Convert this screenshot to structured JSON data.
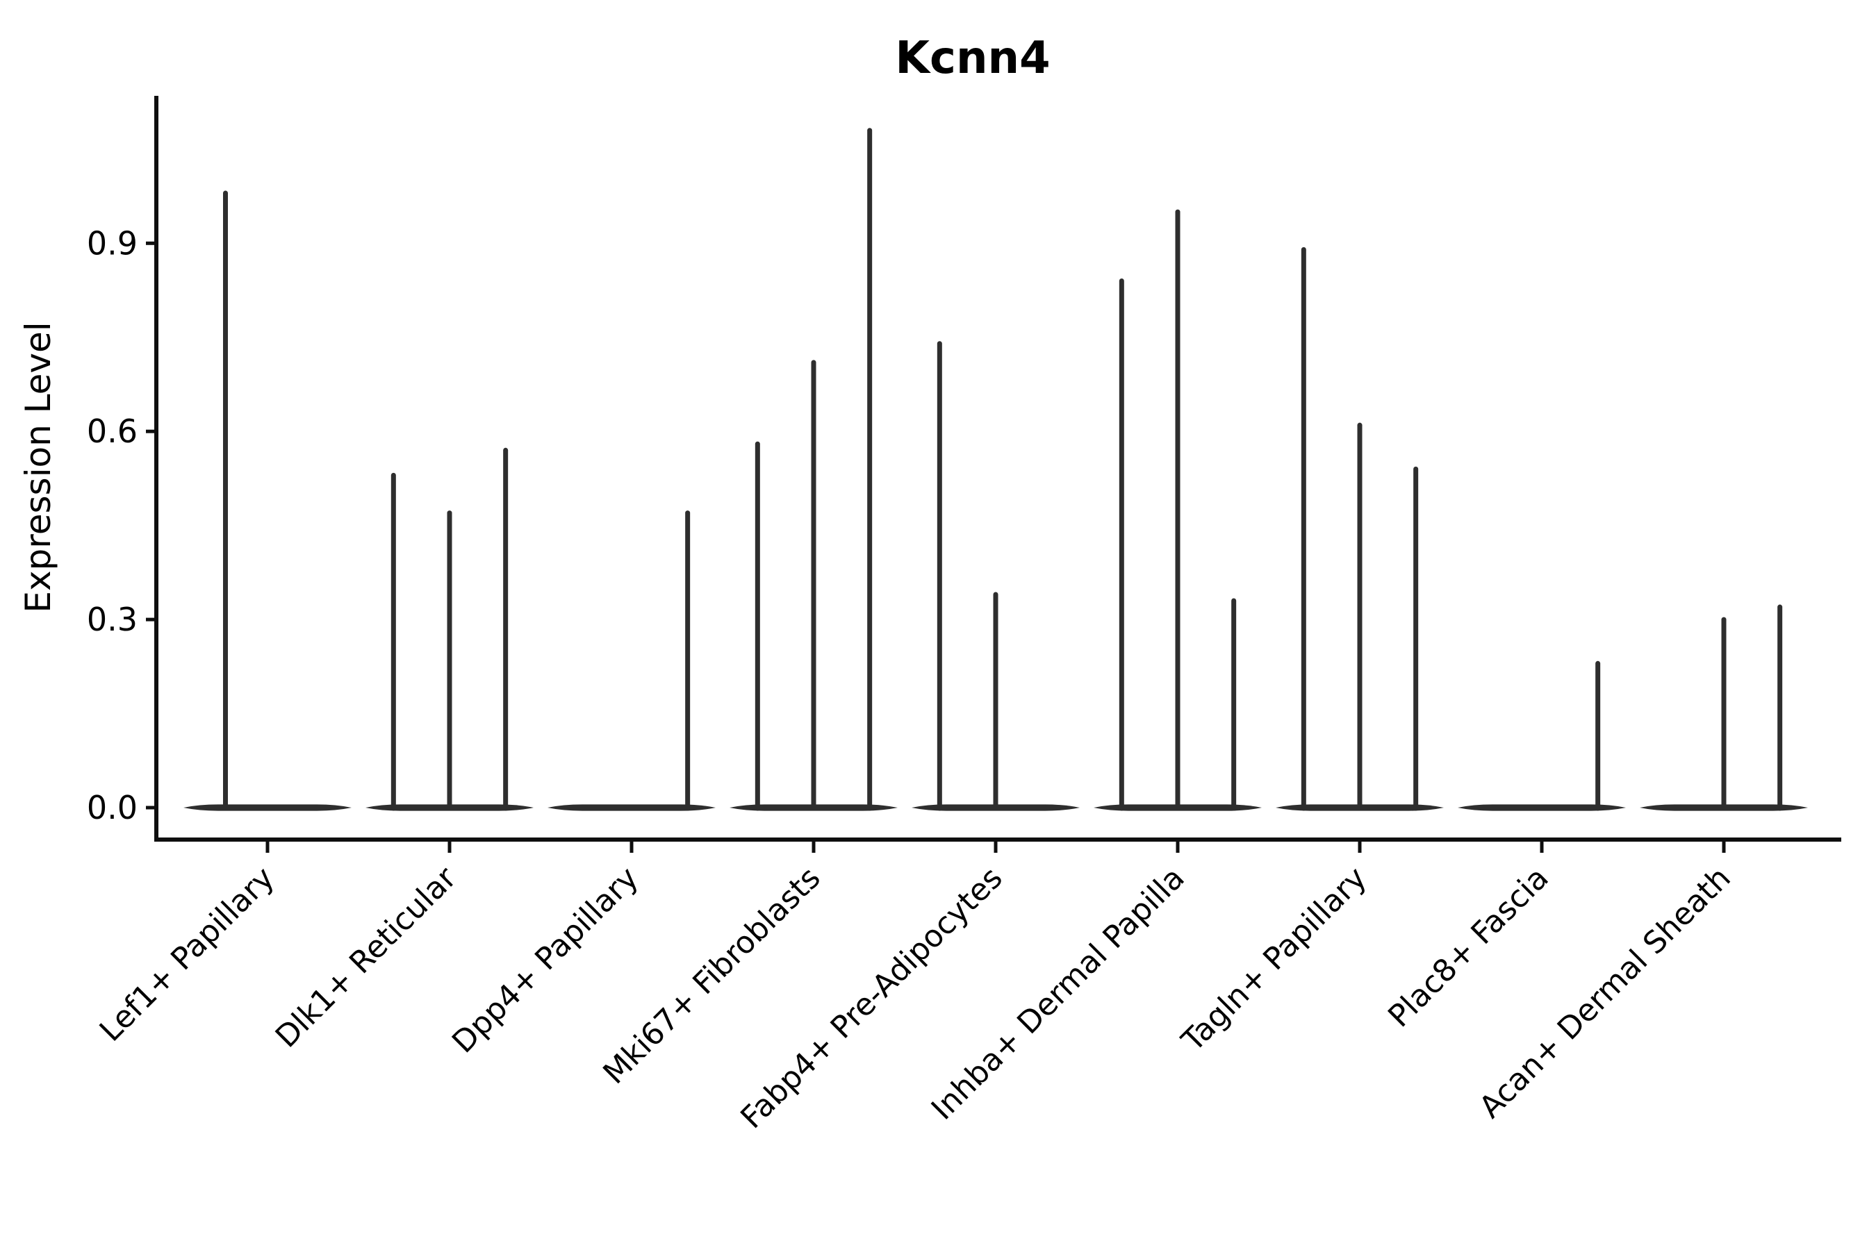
{
  "chart_data": {
    "type": "violin",
    "title": "Kcnn4",
    "ylabel": "Expression Level",
    "xlabel": "",
    "yticks": [
      {
        "label": "0.0",
        "value": 0.0
      },
      {
        "label": "0.3",
        "value": 0.3
      },
      {
        "label": "0.6",
        "value": 0.6
      },
      {
        "label": "0.9",
        "value": 0.9
      }
    ],
    "ylim": [
      -0.05,
      1.13
    ],
    "grid": false,
    "legend": "none",
    "description": "Violin plot of Kcnn4 expression per fibroblast cluster; each category holds dodged sub-violins flattened at zero with thin density spikes reaching the maximum expression value.",
    "categories": [
      {
        "label": "Lef1+ Papillary",
        "n_groups": 2,
        "spikes": [
          {
            "group": 1,
            "value": 0.98
          }
        ]
      },
      {
        "label": "Dlk1+ Reticular",
        "n_groups": 3,
        "spikes": [
          {
            "group": 1,
            "value": 0.53
          },
          {
            "group": 2,
            "value": 0.47
          },
          {
            "group": 3,
            "value": 0.57
          }
        ]
      },
      {
        "label": "Dpp4+ Papillary",
        "n_groups": 3,
        "spikes": [
          {
            "group": 3,
            "value": 0.47
          }
        ]
      },
      {
        "label": "Mki67+ Fibroblasts",
        "n_groups": 3,
        "spikes": [
          {
            "group": 1,
            "value": 0.58
          },
          {
            "group": 2,
            "value": 0.71
          },
          {
            "group": 3,
            "value": 1.08
          }
        ]
      },
      {
        "label": "Fabp4+ Pre-Adipocytes",
        "n_groups": 3,
        "spikes": [
          {
            "group": 1,
            "value": 0.74
          },
          {
            "group": 2,
            "value": 0.34
          }
        ]
      },
      {
        "label": "Inhba+ Dermal Papilla",
        "n_groups": 3,
        "spikes": [
          {
            "group": 1,
            "value": 0.84
          },
          {
            "group": 2,
            "value": 0.95
          },
          {
            "group": 3,
            "value": 0.33
          }
        ]
      },
      {
        "label": "Tagln+ Papillary",
        "n_groups": 3,
        "spikes": [
          {
            "group": 1,
            "value": 0.89
          },
          {
            "group": 2,
            "value": 0.61
          },
          {
            "group": 3,
            "value": 0.54
          }
        ]
      },
      {
        "label": "Plac8+ Fascia",
        "n_groups": 3,
        "spikes": [
          {
            "group": 3,
            "value": 0.23
          }
        ]
      },
      {
        "label": "Acan+ Dermal Sheath",
        "n_groups": 3,
        "spikes": [
          {
            "group": 2,
            "value": 0.3
          },
          {
            "group": 3,
            "value": 0.32
          }
        ]
      }
    ],
    "colors": {
      "violin": "#2e2e2e",
      "axis": "#0f0f0f",
      "text": "#000000",
      "background": "#ffffff"
    }
  }
}
